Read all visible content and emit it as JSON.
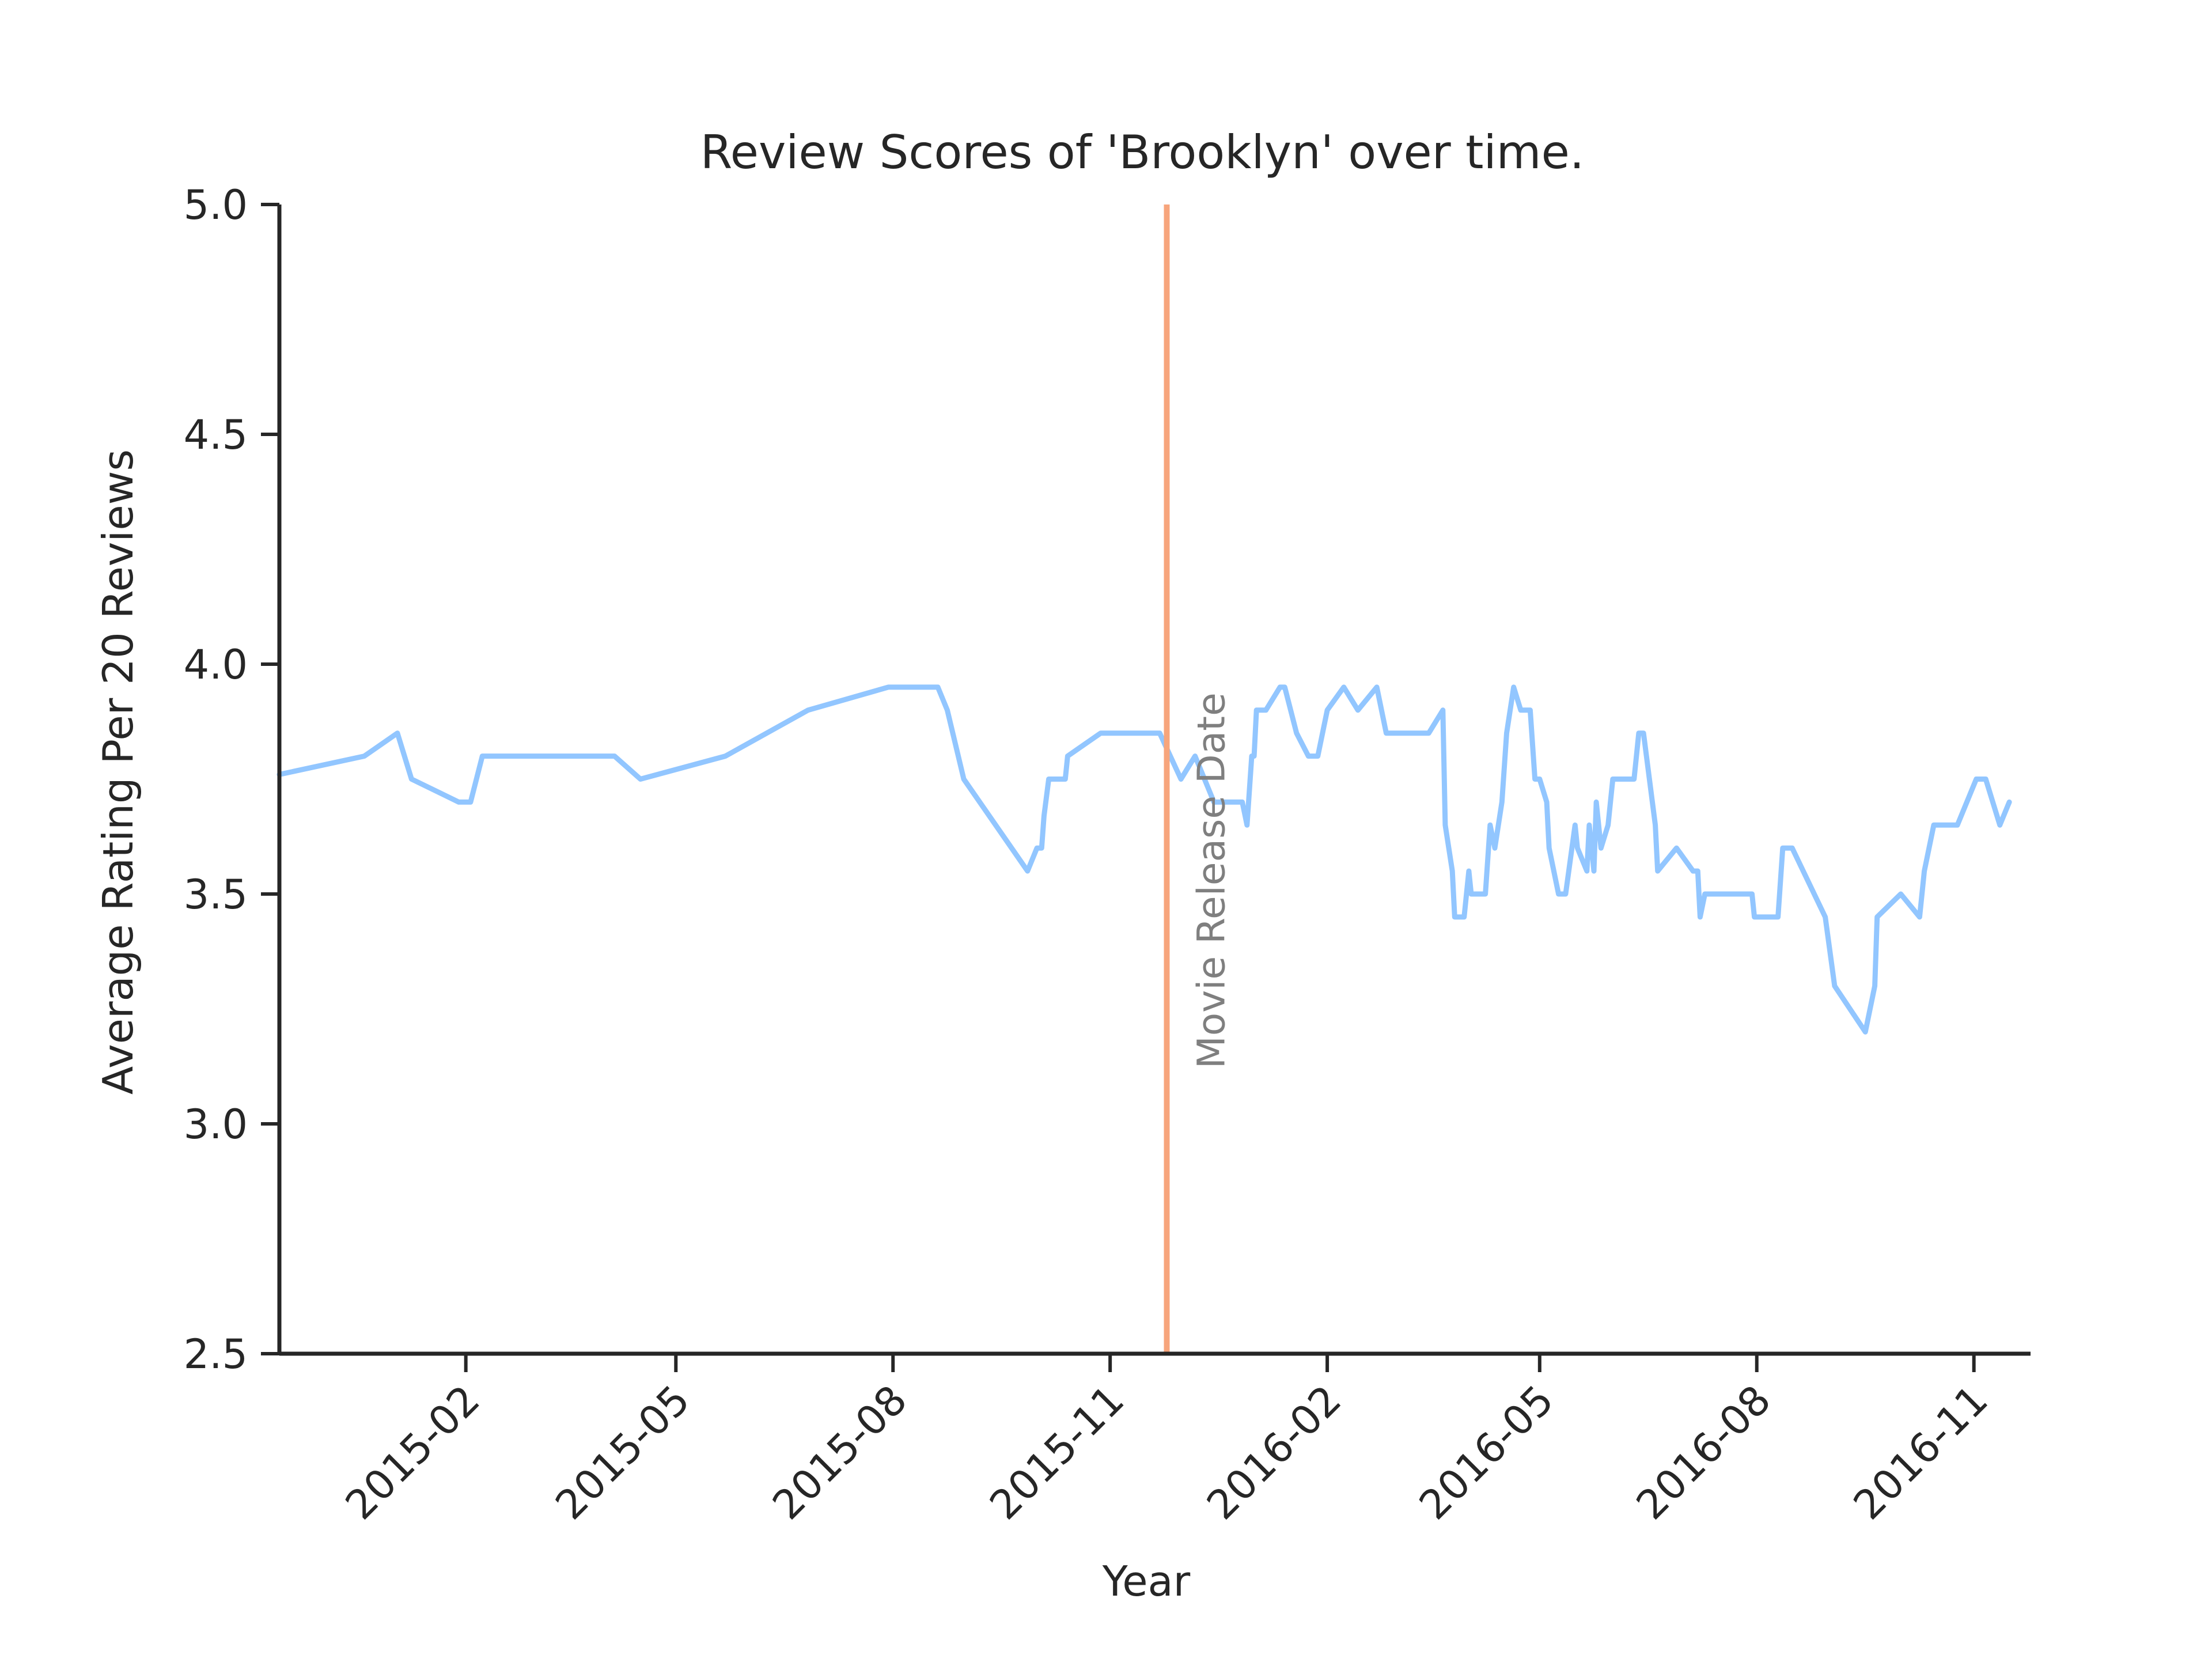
{
  "chart_data": {
    "type": "line",
    "title": "Review Scores of 'Brooklyn' over time.",
    "xlabel": "Year",
    "ylabel": "Average Rating Per 20 Reviews",
    "ylim": [
      2.5,
      5.0
    ],
    "xlim": [
      "2014-11-14",
      "2016-11-25"
    ],
    "x_ticks": [
      "2015-02",
      "2015-05",
      "2015-08",
      "2015-11",
      "2016-02",
      "2016-05",
      "2016-08",
      "2016-11"
    ],
    "y_ticks": [
      "2.5",
      "3.0",
      "3.5",
      "4.0",
      "4.5",
      "5.0"
    ],
    "grid": false,
    "legend": "none",
    "colors": {
      "series": "#92c6ff",
      "release_line": "#f7a57c",
      "annotation": "#7f7f7f",
      "axis": "#262626"
    },
    "annotation": {
      "text": "Movie Release Date",
      "date": "2015-11-25"
    },
    "series": [
      {
        "points": [
          [
            "2014-11-14",
            3.76
          ],
          [
            "2014-12-20",
            3.8
          ],
          [
            "2015-01-03",
            3.85
          ],
          [
            "2015-01-09",
            3.75
          ],
          [
            "2015-01-29",
            3.7
          ],
          [
            "2015-02-03",
            3.7
          ],
          [
            "2015-02-08",
            3.8
          ],
          [
            "2015-03-20",
            3.8
          ],
          [
            "2015-04-05",
            3.8
          ],
          [
            "2015-04-16",
            3.75
          ],
          [
            "2015-05-22",
            3.8
          ],
          [
            "2015-06-26",
            3.9
          ],
          [
            "2015-07-30",
            3.95
          ],
          [
            "2015-08-20",
            3.95
          ],
          [
            "2015-08-24",
            3.9
          ],
          [
            "2015-08-31",
            3.75
          ],
          [
            "2015-09-27",
            3.55
          ],
          [
            "2015-10-01",
            3.6
          ],
          [
            "2015-10-03",
            3.6
          ],
          [
            "2015-10-04",
            3.67
          ],
          [
            "2015-10-06",
            3.75
          ],
          [
            "2015-10-13",
            3.75
          ],
          [
            "2015-10-14",
            3.8
          ],
          [
            "2015-10-28",
            3.85
          ],
          [
            "2015-11-06",
            3.85
          ],
          [
            "2015-11-22",
            3.85
          ],
          [
            "2015-12-01",
            3.75
          ],
          [
            "2015-12-07",
            3.8
          ],
          [
            "2015-12-15",
            3.7
          ],
          [
            "2015-12-27",
            3.7
          ],
          [
            "2015-12-29",
            3.65
          ],
          [
            "2015-12-31",
            3.8
          ],
          [
            "2016-01-01",
            3.8
          ],
          [
            "2016-01-02",
            3.9
          ],
          [
            "2016-01-06",
            3.9
          ],
          [
            "2016-01-12",
            3.95
          ],
          [
            "2016-01-14",
            3.95
          ],
          [
            "2016-01-19",
            3.85
          ],
          [
            "2016-01-24",
            3.8
          ],
          [
            "2016-01-28",
            3.8
          ],
          [
            "2016-02-01",
            3.9
          ],
          [
            "2016-02-08",
            3.95
          ],
          [
            "2016-02-14",
            3.9
          ],
          [
            "2016-02-22",
            3.95
          ],
          [
            "2016-02-26",
            3.85
          ],
          [
            "2016-03-15",
            3.85
          ],
          [
            "2016-03-21",
            3.9
          ],
          [
            "2016-03-22",
            3.65
          ],
          [
            "2016-03-25",
            3.55
          ],
          [
            "2016-03-26",
            3.45
          ],
          [
            "2016-03-30",
            3.45
          ],
          [
            "2016-04-01",
            3.55
          ],
          [
            "2016-04-02",
            3.5
          ],
          [
            "2016-04-08",
            3.5
          ],
          [
            "2016-04-10",
            3.65
          ],
          [
            "2016-04-12",
            3.6
          ],
          [
            "2016-04-15",
            3.7
          ],
          [
            "2016-04-17",
            3.85
          ],
          [
            "2016-04-20",
            3.95
          ],
          [
            "2016-04-23",
            3.9
          ],
          [
            "2016-04-27",
            3.9
          ],
          [
            "2016-04-29",
            3.75
          ],
          [
            "2016-05-01",
            3.75
          ],
          [
            "2016-05-04",
            3.7
          ],
          [
            "2016-05-05",
            3.6
          ],
          [
            "2016-05-09",
            3.5
          ],
          [
            "2016-05-12",
            3.5
          ],
          [
            "2016-05-16",
            3.65
          ],
          [
            "2016-05-17",
            3.6
          ],
          [
            "2016-05-21",
            3.55
          ],
          [
            "2016-05-22",
            3.65
          ],
          [
            "2016-05-24",
            3.55
          ],
          [
            "2016-05-25",
            3.7
          ],
          [
            "2016-05-27",
            3.6
          ],
          [
            "2016-05-30",
            3.65
          ],
          [
            "2016-06-01",
            3.75
          ],
          [
            "2016-06-10",
            3.75
          ],
          [
            "2016-06-12",
            3.85
          ],
          [
            "2016-06-14",
            3.85
          ],
          [
            "2016-06-19",
            3.65
          ],
          [
            "2016-06-20",
            3.55
          ],
          [
            "2016-06-28",
            3.6
          ],
          [
            "2016-07-05",
            3.55
          ],
          [
            "2016-07-07",
            3.55
          ],
          [
            "2016-07-08",
            3.45
          ],
          [
            "2016-07-10",
            3.5
          ],
          [
            "2016-07-30",
            3.5
          ],
          [
            "2016-07-31",
            3.45
          ],
          [
            "2016-08-10",
            3.45
          ],
          [
            "2016-08-12",
            3.6
          ],
          [
            "2016-08-16",
            3.6
          ],
          [
            "2016-08-30",
            3.45
          ],
          [
            "2016-09-03",
            3.3
          ],
          [
            "2016-09-16",
            3.2
          ],
          [
            "2016-09-20",
            3.3
          ],
          [
            "2016-09-21",
            3.45
          ],
          [
            "2016-10-01",
            3.5
          ],
          [
            "2016-10-09",
            3.45
          ],
          [
            "2016-10-11",
            3.55
          ],
          [
            "2016-10-15",
            3.65
          ],
          [
            "2016-10-25",
            3.65
          ],
          [
            "2016-11-02",
            3.75
          ],
          [
            "2016-11-06",
            3.75
          ],
          [
            "2016-11-12",
            3.65
          ],
          [
            "2016-11-16",
            3.7
          ]
        ]
      }
    ]
  }
}
